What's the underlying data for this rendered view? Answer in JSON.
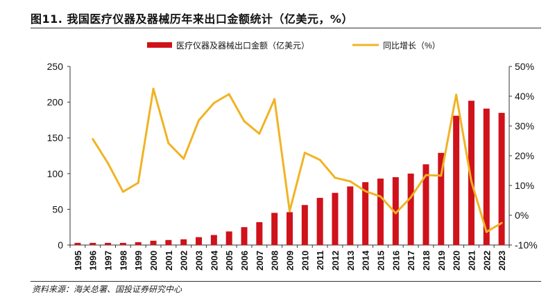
{
  "title": "图11. 我国医疗仪器及器械历年来出口金额统计（亿美元，%）",
  "source": "资料来源：海关总署、国投证券研究中心",
  "colors": {
    "bar": "#d0121b",
    "line": "#f0b323",
    "axis": "#333333"
  },
  "chart_data": {
    "type": "bar+line",
    "title": "",
    "categories": [
      "1995",
      "1996",
      "1997",
      "1998",
      "1999",
      "2000",
      "2001",
      "2002",
      "2003",
      "2004",
      "2005",
      "2006",
      "2007",
      "2008",
      "2009",
      "2010",
      "2011",
      "2012",
      "2013",
      "2014",
      "2015",
      "2016",
      "2017",
      "2018",
      "2019",
      "2020",
      "2021",
      "2022",
      "2023"
    ],
    "series": [
      {
        "name": "医疗仪器及器械出口金额（亿美元）",
        "type": "bar",
        "axis": "left",
        "values": [
          3,
          3,
          3,
          3,
          4,
          6,
          7,
          8,
          11,
          14,
          19,
          25,
          32,
          45,
          46,
          56,
          66,
          73,
          82,
          88,
          93,
          95,
          100,
          113,
          129,
          181,
          202,
          191,
          185
        ]
      },
      {
        "name": "同比增长（%）",
        "type": "line",
        "axis": "right",
        "values": [
          null,
          25.6,
          17.5,
          7.9,
          10.9,
          42.5,
          24.2,
          19.0,
          31.9,
          37.7,
          40.7,
          31.6,
          27.4,
          39.0,
          1.4,
          21.0,
          18.6,
          12.6,
          11.4,
          8.1,
          6.3,
          0.7,
          6.0,
          13.5,
          13.3,
          40.5,
          11.4,
          -5.6,
          -2.6
        ]
      }
    ],
    "y_left": {
      "range": [
        0,
        250
      ],
      "ticks": [
        "0",
        "50",
        "100",
        "150",
        "200",
        "250"
      ]
    },
    "y_right": {
      "range": [
        -10,
        50
      ],
      "ticks": [
        "-10%",
        "0%",
        "10%",
        "20%",
        "30%",
        "40%",
        "50%"
      ]
    },
    "grid": false,
    "legend": "top"
  }
}
